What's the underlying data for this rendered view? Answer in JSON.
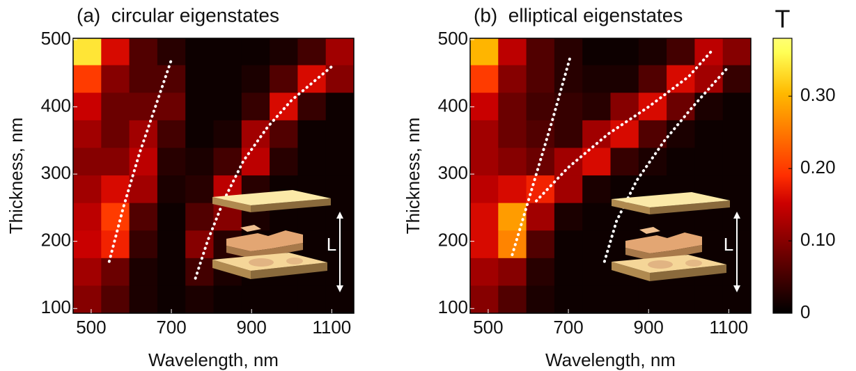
{
  "chart_data": [
    {
      "type": "heatmap",
      "title": "(a)  circular eigenstates",
      "x_label": "Wavelength, nm",
      "y_label": "Thickness, nm",
      "x": [
        490,
        560,
        630,
        700,
        770,
        840,
        910,
        980,
        1050,
        1120
      ],
      "y": [
        114,
        155,
        196,
        237,
        278,
        319,
        360,
        401,
        442,
        483
      ],
      "z": [
        [
          0.1,
          0.06,
          0.02,
          0.01,
          0.02,
          0.01,
          0.01,
          0.01,
          0.01,
          0.01
        ],
        [
          0.12,
          0.08,
          0.02,
          0.01,
          0.05,
          0.02,
          0.01,
          0.01,
          0.01,
          0.01
        ],
        [
          0.15,
          0.18,
          0.04,
          0.01,
          0.1,
          0.03,
          0.01,
          0.01,
          0.01,
          0.01
        ],
        [
          0.14,
          0.2,
          0.06,
          0.01,
          0.06,
          0.1,
          0.02,
          0.01,
          0.01,
          0.01
        ],
        [
          0.12,
          0.16,
          0.12,
          0.02,
          0.03,
          0.14,
          0.03,
          0.01,
          0.01,
          0.01
        ],
        [
          0.1,
          0.1,
          0.14,
          0.03,
          0.02,
          0.05,
          0.14,
          0.03,
          0.01,
          0.01
        ],
        [
          0.12,
          0.08,
          0.12,
          0.05,
          0.01,
          0.02,
          0.12,
          0.06,
          0.01,
          0.01
        ],
        [
          0.15,
          0.08,
          0.08,
          0.08,
          0.01,
          0.01,
          0.04,
          0.16,
          0.04,
          0.01
        ],
        [
          0.2,
          0.1,
          0.06,
          0.06,
          0.01,
          0.01,
          0.02,
          0.06,
          0.16,
          0.1
        ],
        [
          0.34,
          0.16,
          0.06,
          0.03,
          0.01,
          0.01,
          0.01,
          0.02,
          0.05,
          0.12
        ]
      ],
      "xlim": [
        455,
        1155
      ],
      "ylim": [
        93,
        502
      ],
      "xticks": [
        500,
        700,
        900,
        1100
      ],
      "yticks": [
        100,
        200,
        300,
        400,
        500
      ],
      "lines": [
        {
          "color": "#ffffff",
          "x": [
            545,
            580,
            620,
            660,
            700
          ],
          "y": [
            170,
            250,
            330,
            400,
            470
          ]
        },
        {
          "color": "#ffffff",
          "x": [
            760,
            790,
            830,
            880,
            940,
            1000,
            1060,
            1100
          ],
          "y": [
            145,
            200,
            260,
            320,
            370,
            410,
            440,
            460
          ]
        }
      ],
      "inset_label": "L"
    },
    {
      "type": "heatmap",
      "title": "(b)  elliptical eigenstates",
      "x_label": "Wavelength, nm",
      "y_label": "Thickness, nm",
      "x": [
        490,
        560,
        630,
        700,
        770,
        840,
        910,
        980,
        1050,
        1120
      ],
      "y": [
        114,
        155,
        196,
        237,
        278,
        319,
        360,
        401,
        442,
        483
      ],
      "z": [
        [
          0.1,
          0.06,
          0.02,
          0.01,
          0.01,
          0.01,
          0.01,
          0.01,
          0.01,
          0.01
        ],
        [
          0.12,
          0.1,
          0.03,
          0.01,
          0.01,
          0.01,
          0.01,
          0.01,
          0.01,
          0.01
        ],
        [
          0.16,
          0.26,
          0.06,
          0.01,
          0.01,
          0.01,
          0.01,
          0.01,
          0.01,
          0.01
        ],
        [
          0.16,
          0.28,
          0.12,
          0.02,
          0.01,
          0.01,
          0.01,
          0.01,
          0.01,
          0.01
        ],
        [
          0.14,
          0.16,
          0.18,
          0.12,
          0.02,
          0.01,
          0.01,
          0.01,
          0.01,
          0.01
        ],
        [
          0.12,
          0.1,
          0.08,
          0.12,
          0.16,
          0.04,
          0.02,
          0.01,
          0.01,
          0.01
        ],
        [
          0.12,
          0.08,
          0.06,
          0.04,
          0.12,
          0.16,
          0.06,
          0.02,
          0.01,
          0.01
        ],
        [
          0.15,
          0.08,
          0.05,
          0.04,
          0.03,
          0.1,
          0.16,
          0.08,
          0.02,
          0.01
        ],
        [
          0.2,
          0.1,
          0.06,
          0.03,
          0.02,
          0.02,
          0.06,
          0.16,
          0.12,
          0.04
        ],
        [
          0.3,
          0.14,
          0.06,
          0.03,
          0.01,
          0.01,
          0.02,
          0.05,
          0.14,
          0.1
        ]
      ],
      "xlim": [
        455,
        1155
      ],
      "ylim": [
        93,
        502
      ],
      "xticks": [
        500,
        700,
        900,
        1100
      ],
      "yticks": [
        100,
        200,
        300,
        400,
        500
      ],
      "lines": [
        {
          "color": "#ffffff",
          "x": [
            560,
            590,
            620,
            660,
            705
          ],
          "y": [
            180,
            240,
            300,
            380,
            475
          ]
        },
        {
          "color": "#ffffff",
          "x": [
            620,
            700,
            800,
            900,
            1000,
            1060
          ],
          "y": [
            260,
            310,
            360,
            400,
            445,
            485
          ]
        },
        {
          "color": "#ffffff",
          "x": [
            790,
            820,
            870,
            940,
            1010,
            1100
          ],
          "y": [
            170,
            230,
            290,
            350,
            400,
            460
          ]
        }
      ],
      "inset_label": "L"
    }
  ],
  "colorbar": {
    "label": "T",
    "lim": [
      0,
      0.38
    ],
    "ticks": [
      0,
      {
        "value": 0.1,
        "label": "0.10"
      },
      {
        "value": 0.2,
        "label": "0.20"
      },
      {
        "value": 0.3,
        "label": "0.30"
      }
    ]
  }
}
